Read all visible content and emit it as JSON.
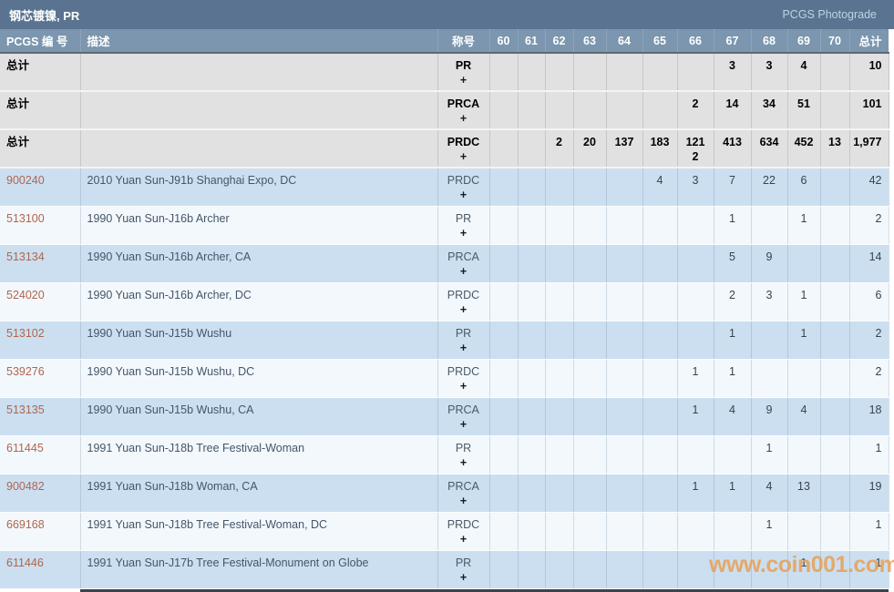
{
  "title_bar": {
    "title": "钢芯镀镍, PR",
    "link": "PCGS Photograde"
  },
  "table": {
    "columns": [
      "PCGS 编 号",
      "描述",
      "称号",
      "60",
      "61",
      "62",
      "63",
      "64",
      "65",
      "66",
      "67",
      "68",
      "69",
      "70",
      "总计"
    ],
    "plus_label": "+",
    "rows": [
      {
        "kind": "total",
        "label": "总计",
        "grade": "PR",
        "values": [
          "",
          "",
          "",
          "",
          "",
          "",
          "",
          "3",
          "3",
          "4",
          "",
          "10"
        ],
        "plus_values": [
          "",
          "",
          "",
          "",
          "",
          "",
          "",
          "",
          "",
          "",
          "",
          ""
        ]
      },
      {
        "kind": "total",
        "label": "总计",
        "grade": "PRCA",
        "values": [
          "",
          "",
          "",
          "",
          "",
          "",
          "2",
          "14",
          "34",
          "51",
          "",
          "101"
        ],
        "plus_values": [
          "",
          "",
          "",
          "",
          "",
          "",
          "",
          "",
          "",
          "",
          "",
          ""
        ]
      },
      {
        "kind": "total",
        "label": "总计",
        "grade": "PRDC",
        "values": [
          "",
          "",
          "2",
          "20",
          "137",
          "183",
          "121",
          "413",
          "634",
          "452",
          "13",
          "1,977"
        ],
        "plus_values": [
          "",
          "",
          "",
          "",
          "",
          "",
          "2",
          "",
          "",
          "",
          "",
          ""
        ]
      },
      {
        "kind": "data",
        "id": "900240",
        "desc": "2010 Yuan Sun-J91b Shanghai Expo, DC",
        "grade": "PRDC",
        "values": [
          "",
          "",
          "",
          "",
          "",
          "4",
          "3",
          "7",
          "22",
          "6",
          "",
          "42"
        ]
      },
      {
        "kind": "data",
        "id": "513100",
        "desc": "1990 Yuan Sun-J16b Archer",
        "grade": "PR",
        "values": [
          "",
          "",
          "",
          "",
          "",
          "",
          "",
          "1",
          "",
          "1",
          "",
          "2"
        ]
      },
      {
        "kind": "data",
        "id": "513134",
        "desc": "1990 Yuan Sun-J16b Archer, CA",
        "grade": "PRCA",
        "values": [
          "",
          "",
          "",
          "",
          "",
          "",
          "",
          "5",
          "9",
          "",
          "",
          "14"
        ]
      },
      {
        "kind": "data",
        "id": "524020",
        "desc": "1990 Yuan Sun-J16b Archer, DC",
        "grade": "PRDC",
        "values": [
          "",
          "",
          "",
          "",
          "",
          "",
          "",
          "2",
          "3",
          "1",
          "",
          "6"
        ]
      },
      {
        "kind": "data",
        "id": "513102",
        "desc": "1990 Yuan Sun-J15b Wushu",
        "grade": "PR",
        "values": [
          "",
          "",
          "",
          "",
          "",
          "",
          "",
          "1",
          "",
          "1",
          "",
          "2"
        ]
      },
      {
        "kind": "data",
        "id": "539276",
        "desc": "1990 Yuan Sun-J15b Wushu, DC",
        "grade": "PRDC",
        "values": [
          "",
          "",
          "",
          "",
          "",
          "",
          "1",
          "1",
          "",
          "",
          "",
          "2"
        ]
      },
      {
        "kind": "data",
        "id": "513135",
        "desc": "1990 Yuan Sun-J15b Wushu, CA",
        "grade": "PRCA",
        "values": [
          "",
          "",
          "",
          "",
          "",
          "",
          "1",
          "4",
          "9",
          "4",
          "",
          "18"
        ]
      },
      {
        "kind": "data",
        "id": "611445",
        "desc": "1991 Yuan Sun-J18b Tree Festival-Woman",
        "grade": "PR",
        "values": [
          "",
          "",
          "",
          "",
          "",
          "",
          "",
          "",
          "1",
          "",
          "",
          "1"
        ]
      },
      {
        "kind": "data",
        "id": "900482",
        "desc": "1991 Yuan Sun-J18b Woman, CA",
        "grade": "PRCA",
        "values": [
          "",
          "",
          "",
          "",
          "",
          "",
          "1",
          "1",
          "4",
          "13",
          "",
          "19"
        ]
      },
      {
        "kind": "data",
        "id": "669168",
        "desc": "1991 Yuan Sun-J18b Tree Festival-Woman, DC",
        "grade": "PRDC",
        "values": [
          "",
          "",
          "",
          "",
          "",
          "",
          "",
          "",
          "1",
          "",
          "",
          "1"
        ]
      },
      {
        "kind": "data",
        "id": "611446",
        "desc": "1991 Yuan Sun-J17b Tree Festival-Monument on Globe",
        "grade": "PR",
        "values": [
          "",
          "",
          "",
          "",
          "",
          "",
          "",
          "",
          "",
          "1",
          "",
          "1"
        ]
      }
    ]
  },
  "watermark": "www.coin001.com",
  "colors": {
    "title_bar_bg": "#5a7390",
    "header_bg": "#7b96ae",
    "total_row_bg": "#e1e1e1",
    "row_blue_bg": "#cbdff0",
    "row_light_bg": "#f3f8fc",
    "link_color": "#b0654e",
    "watermark_color": "#e99e4d"
  }
}
